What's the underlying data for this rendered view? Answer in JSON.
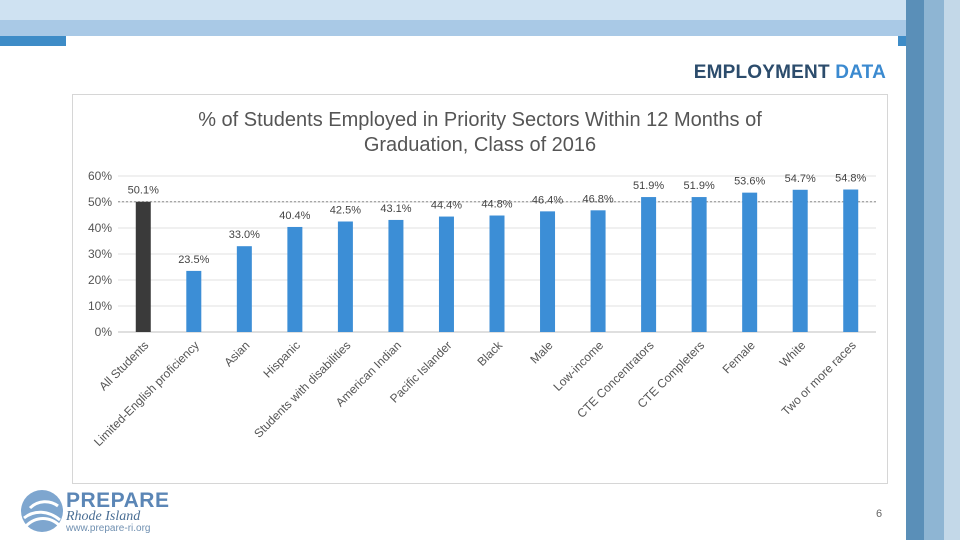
{
  "slide": {
    "section_title_main": "EMPLOYMENT",
    "section_title_accent": "DATA",
    "page_number": "6"
  },
  "logo": {
    "line1": "PREPARE",
    "line2": "Rhode Island",
    "line3": "www.prepare-ri.org"
  },
  "colors": {
    "highlight_bar": "#3a3a3a",
    "bar": "#3c8ed6",
    "reference_line": "#8a8a8a"
  },
  "chart_data": {
    "type": "bar",
    "title_line1": "% of Students Employed in Priority Sectors Within 12 Months of",
    "title_line2": "Graduation, Class of 2016",
    "categories": [
      "All Students",
      "Limited-English proficiency",
      "Asian",
      "Hispanic",
      "Students with disabilities",
      "American Indian",
      "Pacific Islander",
      "Black",
      "Male",
      "Low-income",
      "CTE Concentrators",
      "CTE Completers",
      "Female",
      "White",
      "Two or more races"
    ],
    "values": [
      50.1,
      23.5,
      33.0,
      40.4,
      42.5,
      43.1,
      44.4,
      44.8,
      46.4,
      46.8,
      51.9,
      51.9,
      53.6,
      54.7,
      54.8
    ],
    "data_labels": [
      "50.1%",
      "23.5%",
      "33.0%",
      "40.4%",
      "42.5%",
      "43.1%",
      "44.4%",
      "44.8%",
      "46.4%",
      "46.8%",
      "51.9%",
      "51.9%",
      "53.6%",
      "54.7%",
      "54.8%"
    ],
    "highlight_index": 0,
    "reference_value": 50.1,
    "ylim": [
      0,
      60
    ],
    "yticks": [
      0,
      10,
      20,
      30,
      40,
      50,
      60
    ],
    "ytick_labels": [
      "0%",
      "10%",
      "20%",
      "30%",
      "40%",
      "50%",
      "60%"
    ],
    "xlabel": "",
    "ylabel": "",
    "grid": true,
    "legend": "none"
  }
}
